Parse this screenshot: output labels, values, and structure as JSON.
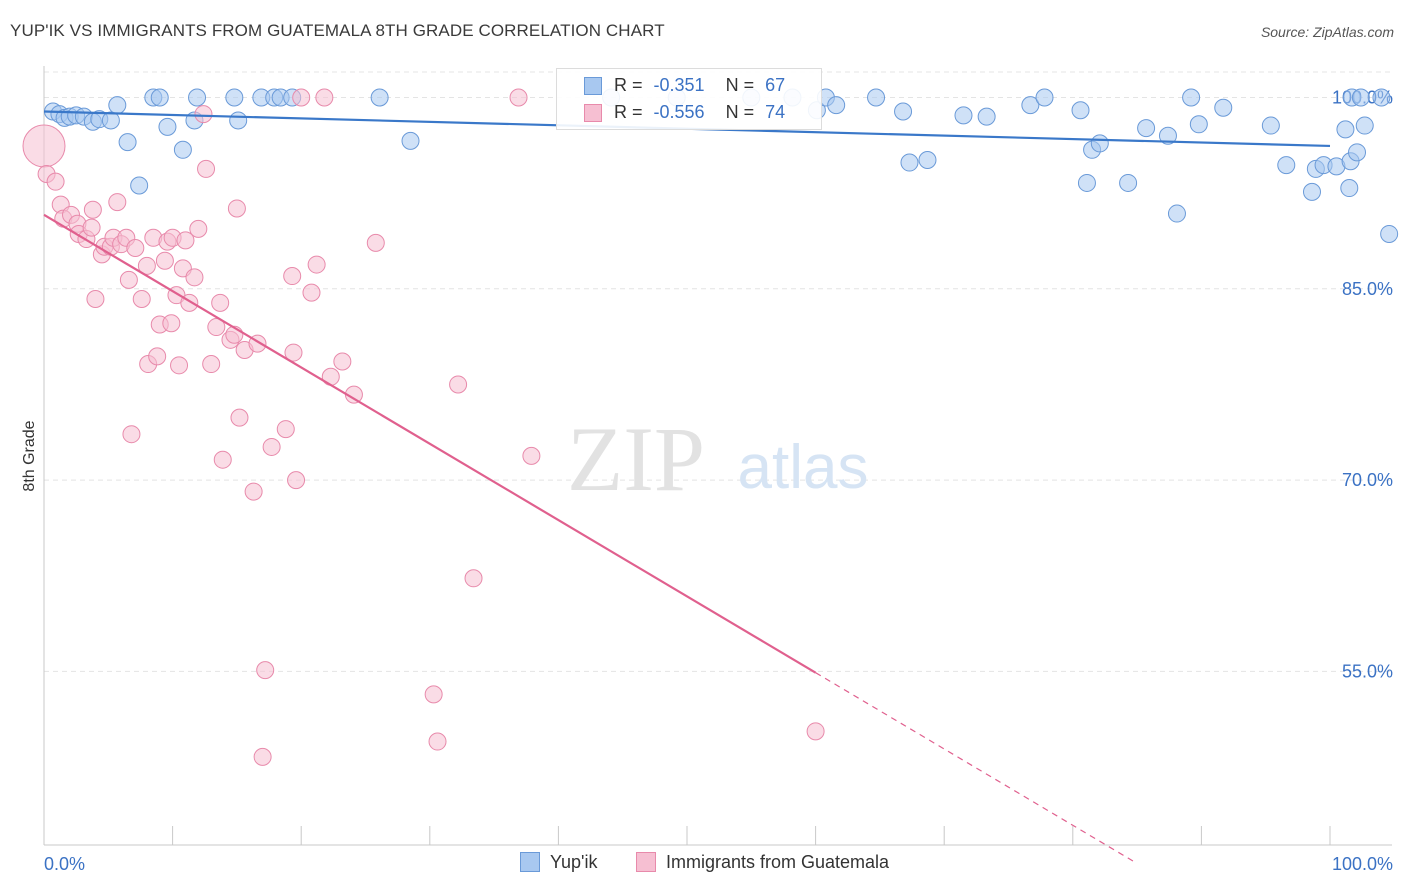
{
  "title": "YUP'IK VS IMMIGRANTS FROM GUATEMALA 8TH GRADE CORRELATION CHART",
  "source": "Source: ZipAtlas.com",
  "watermark": {
    "zip": "ZIP",
    "atlas": "atlas"
  },
  "colors": {
    "blue_fill": "#a8c8f0",
    "blue_stroke": "#6a9ad8",
    "blue_line": "#3a78c9",
    "pink_fill": "#f6bfd2",
    "pink_stroke": "#e88aab",
    "pink_line": "#e0608e",
    "axis_text": "#3b72c4",
    "grid": "#e4e4e4"
  },
  "legend_r": [
    {
      "series": "Yup'ik",
      "r_label": "R =",
      "r_value": "-0.351",
      "n_label": "N =",
      "n_value": "67"
    },
    {
      "series": "Immigrants from Guatemala",
      "r_label": "R =",
      "r_value": "-0.556",
      "n_label": "N =",
      "n_value": "74"
    }
  ],
  "chart_data": {
    "type": "scatter",
    "title": "YUP'IK VS IMMIGRANTS FROM GUATEMALA 8TH GRADE CORRELATION CHART",
    "xlabel": "",
    "ylabel": "8th Grade",
    "x_tick_labels": [
      "0.0%",
      "100.0%"
    ],
    "y_tick_labels": [
      "100.0%",
      "85.0%",
      "70.0%",
      "55.0%"
    ],
    "y_ticks": [
      100,
      85,
      70,
      55
    ],
    "xlim": [
      0,
      100
    ],
    "ylim": [
      40,
      102
    ],
    "grid": true,
    "legend": "bottom",
    "series": [
      {
        "name": "Yup'ik",
        "color": "#a8c8f0",
        "points": [
          [
            0.7,
            98.9
          ],
          [
            1.2,
            98.7
          ],
          [
            1.6,
            98.4
          ],
          [
            2.0,
            98.5
          ],
          [
            2.5,
            98.6
          ],
          [
            3.1,
            98.5
          ],
          [
            3.8,
            98.1
          ],
          [
            4.3,
            98.3
          ],
          [
            5.2,
            98.2
          ],
          [
            5.7,
            99.4
          ],
          [
            6.5,
            96.5
          ],
          [
            7.4,
            93.1
          ],
          [
            8.5,
            100.0
          ],
          [
            9.0,
            100.0
          ],
          [
            9.6,
            97.7
          ],
          [
            10.8,
            95.9
          ],
          [
            11.7,
            98.2
          ],
          [
            11.9,
            100.0
          ],
          [
            14.8,
            100.0
          ],
          [
            15.1,
            98.2
          ],
          [
            16.9,
            100.0
          ],
          [
            17.9,
            100.0
          ],
          [
            18.4,
            100.0
          ],
          [
            19.3,
            100.0
          ],
          [
            26.1,
            100.0
          ],
          [
            28.5,
            96.6
          ],
          [
            44.1,
            100.0
          ],
          [
            49.2,
            100.0
          ],
          [
            55.0,
            100.0
          ],
          [
            58.2,
            100.0
          ],
          [
            60.1,
            99.0
          ],
          [
            60.8,
            100.0
          ],
          [
            61.6,
            99.4
          ],
          [
            64.7,
            100.0
          ],
          [
            66.8,
            98.9
          ],
          [
            67.3,
            94.9
          ],
          [
            68.7,
            95.1
          ],
          [
            71.5,
            98.6
          ],
          [
            73.3,
            98.5
          ],
          [
            76.7,
            99.4
          ],
          [
            77.8,
            100.0
          ],
          [
            80.6,
            99.0
          ],
          [
            81.1,
            93.3
          ],
          [
            81.5,
            95.9
          ],
          [
            82.1,
            96.4
          ],
          [
            84.3,
            93.3
          ],
          [
            85.7,
            97.6
          ],
          [
            87.4,
            97.0
          ],
          [
            88.1,
            90.9
          ],
          [
            89.2,
            100.0
          ],
          [
            89.8,
            97.9
          ],
          [
            91.7,
            99.2
          ],
          [
            95.4,
            97.8
          ],
          [
            96.6,
            94.7
          ],
          [
            98.6,
            92.6
          ],
          [
            98.9,
            94.4
          ],
          [
            99.5,
            94.7
          ],
          [
            100.5,
            94.6
          ],
          [
            101.2,
            97.5
          ],
          [
            101.5,
            92.9
          ],
          [
            101.6,
            95.0
          ],
          [
            101.7,
            100.0
          ],
          [
            102.1,
            95.7
          ],
          [
            102.4,
            100.0
          ],
          [
            102.7,
            97.8
          ],
          [
            104.0,
            100.0
          ],
          [
            104.6,
            89.3
          ]
        ]
      },
      {
        "name": "Immigrants from Guatemala",
        "color": "#f6bfd2",
        "points": [
          [
            0.0,
            96.2
          ],
          [
            0.2,
            94.0
          ],
          [
            0.9,
            93.4
          ],
          [
            1.3,
            91.6
          ],
          [
            1.5,
            90.5
          ],
          [
            2.1,
            90.8
          ],
          [
            2.6,
            90.1
          ],
          [
            2.7,
            89.3
          ],
          [
            3.3,
            88.9
          ],
          [
            3.7,
            89.8
          ],
          [
            3.8,
            91.2
          ],
          [
            4.0,
            84.2
          ],
          [
            4.5,
            87.7
          ],
          [
            4.7,
            88.3
          ],
          [
            5.2,
            88.3
          ],
          [
            5.4,
            89.0
          ],
          [
            5.7,
            91.8
          ],
          [
            6.0,
            88.5
          ],
          [
            6.4,
            89.0
          ],
          [
            6.6,
            85.7
          ],
          [
            6.8,
            73.6
          ],
          [
            7.1,
            88.2
          ],
          [
            7.6,
            84.2
          ],
          [
            8.0,
            86.8
          ],
          [
            8.1,
            79.1
          ],
          [
            8.5,
            89.0
          ],
          [
            8.8,
            79.7
          ],
          [
            9.0,
            82.2
          ],
          [
            9.4,
            87.2
          ],
          [
            9.6,
            88.7
          ],
          [
            9.9,
            82.3
          ],
          [
            10.0,
            89.0
          ],
          [
            10.3,
            84.5
          ],
          [
            10.5,
            79.0
          ],
          [
            10.8,
            86.6
          ],
          [
            11.0,
            88.8
          ],
          [
            11.3,
            83.9
          ],
          [
            11.7,
            85.9
          ],
          [
            12.0,
            89.7
          ],
          [
            12.4,
            98.7
          ],
          [
            12.6,
            94.4
          ],
          [
            13.0,
            79.1
          ],
          [
            13.4,
            82.0
          ],
          [
            13.7,
            83.9
          ],
          [
            13.9,
            71.6
          ],
          [
            14.5,
            81.0
          ],
          [
            14.8,
            81.4
          ],
          [
            15.0,
            91.3
          ],
          [
            15.2,
            74.9
          ],
          [
            15.6,
            80.2
          ],
          [
            16.3,
            69.1
          ],
          [
            16.6,
            80.7
          ],
          [
            17.0,
            48.3
          ],
          [
            17.2,
            55.1
          ],
          [
            17.7,
            72.6
          ],
          [
            18.8,
            74.0
          ],
          [
            19.3,
            86.0
          ],
          [
            19.4,
            80.0
          ],
          [
            19.6,
            70.0
          ],
          [
            20.0,
            100.0
          ],
          [
            20.8,
            84.7
          ],
          [
            21.2,
            86.9
          ],
          [
            21.8,
            100.0
          ],
          [
            22.3,
            78.1
          ],
          [
            23.2,
            79.3
          ],
          [
            24.1,
            76.7
          ],
          [
            25.8,
            88.6
          ],
          [
            30.3,
            53.2
          ],
          [
            30.6,
            49.5
          ],
          [
            32.2,
            77.5
          ],
          [
            33.4,
            62.3
          ],
          [
            36.9,
            100.0
          ],
          [
            37.9,
            71.9
          ],
          [
            60.0,
            50.3
          ]
        ]
      }
    ],
    "trend_lines": [
      {
        "series": "Yup'ik",
        "x": [
          0,
          100
        ],
        "y": [
          98.9,
          96.2
        ]
      },
      {
        "series": "Immigrants from Guatemala",
        "x": [
          0,
          60
        ],
        "y": [
          90.8,
          54.9
        ]
      }
    ]
  }
}
